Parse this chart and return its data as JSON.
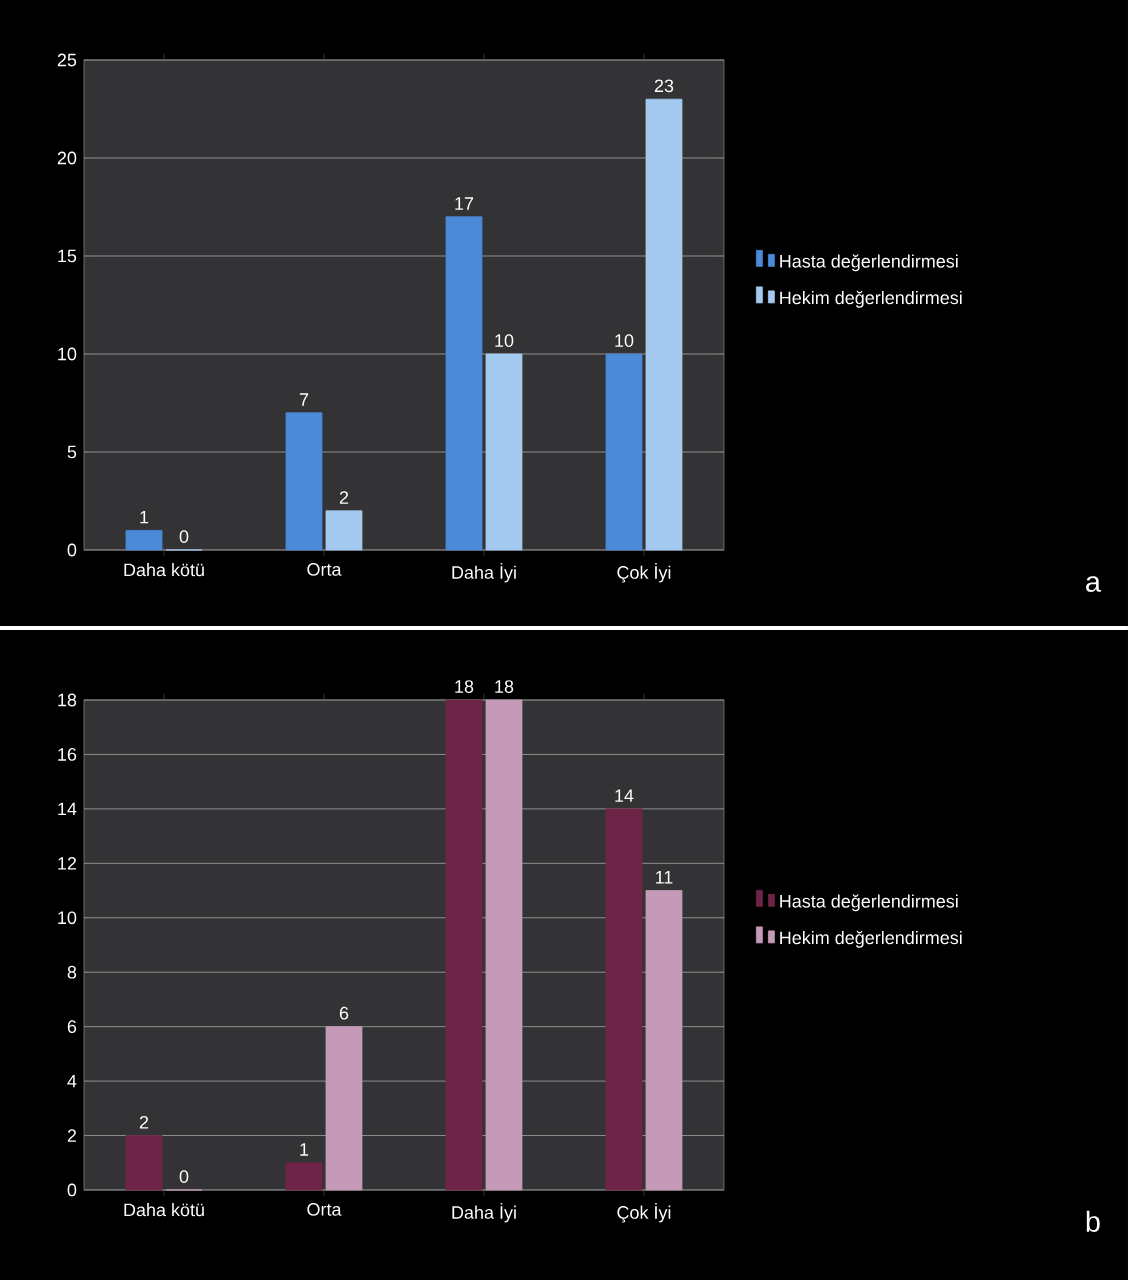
{
  "chart_data": [
    {
      "type": "bar",
      "categories": [
        "Daha kötü",
        "Orta",
        "Daha İyi",
        "Çok İyi"
      ],
      "series": [
        {
          "name": "Hasta değerlendirmesi",
          "color": "#4a8ad8",
          "values": [
            1,
            7,
            17,
            10
          ]
        },
        {
          "name": "Hekim değerlendirmesi",
          "color": "#a3c9ef",
          "values": [
            0,
            2,
            10,
            23
          ]
        }
      ],
      "ylim": [
        0,
        25
      ],
      "yticks": [
        0,
        5,
        10,
        15,
        20,
        25
      ],
      "grid": "y",
      "legend": "right",
      "data_labels": true,
      "annotations": [
        "a"
      ]
    },
    {
      "type": "bar",
      "categories": [
        "Daha kötü",
        "Orta",
        "Daha İyi",
        "Çok İyi"
      ],
      "series": [
        {
          "name": "Hasta değerlendirmesi",
          "color": "#6e2447",
          "values": [
            2,
            1,
            18,
            14
          ]
        },
        {
          "name": "Hekim değerlendirmesi",
          "color": "#c59ab8",
          "values": [
            0,
            6,
            18,
            11
          ]
        }
      ],
      "ylim": [
        0,
        18
      ],
      "yticks": [
        0,
        2,
        4,
        6,
        8,
        10,
        12,
        14,
        16,
        18
      ],
      "grid": "y",
      "legend": "right",
      "data_labels": true,
      "annotations": [
        "b"
      ]
    }
  ]
}
